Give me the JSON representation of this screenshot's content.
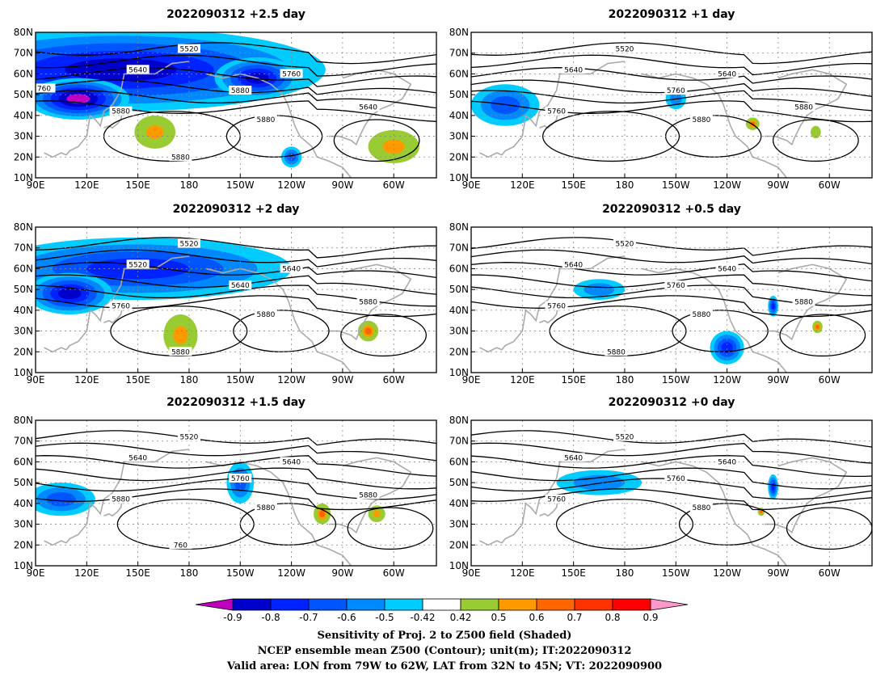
{
  "panels": [
    {
      "title": "2022090312  +2.5 day",
      "contour_labels": [
        "5520",
        "5640",
        "5760",
        "5880",
        "5880",
        "5880",
        "5640",
        "5880",
        "760"
      ],
      "blobs": [
        {
          "lon": 140,
          "lat": 62,
          "rx": 120,
          "ry": 20,
          "level": -0.8
        },
        {
          "lon": 115,
          "lat": 48,
          "rx": 30,
          "ry": 10,
          "level": -0.9
        },
        {
          "lon": 220,
          "lat": 58,
          "rx": 25,
          "ry": 10,
          "level": -0.85
        },
        {
          "lon": 160,
          "lat": 32,
          "rx": 12,
          "ry": 8,
          "level": 0.6
        },
        {
          "lon": 300,
          "lat": 25,
          "rx": 15,
          "ry": 8,
          "level": 0.65
        },
        {
          "lon": 240,
          "lat": 20,
          "rx": 6,
          "ry": 5,
          "level": -0.6
        }
      ]
    },
    {
      "title": "2022090312  +1 day",
      "contour_labels": [
        "5520",
        "5640",
        "5640",
        "5760",
        "5760",
        "5880",
        "5880"
      ],
      "blobs": [
        {
          "lon": 110,
          "lat": 45,
          "rx": 20,
          "ry": 10,
          "level": -0.65
        },
        {
          "lon": 210,
          "lat": 48,
          "rx": 6,
          "ry": 5,
          "level": -0.5
        },
        {
          "lon": 255,
          "lat": 36,
          "rx": 4,
          "ry": 3,
          "level": 0.7
        },
        {
          "lon": 292,
          "lat": 32,
          "rx": 3,
          "ry": 3,
          "level": 0.5
        }
      ]
    },
    {
      "title": "2022090312  +2 day",
      "contour_labels": [
        "5520",
        "5520",
        "5640",
        "5640",
        "5760",
        "5880",
        "5880",
        "5880"
      ],
      "blobs": [
        {
          "lon": 150,
          "lat": 60,
          "rx": 90,
          "ry": 15,
          "level": -0.75
        },
        {
          "lon": 110,
          "lat": 48,
          "rx": 25,
          "ry": 10,
          "level": -0.85
        },
        {
          "lon": 175,
          "lat": 28,
          "rx": 10,
          "ry": 10,
          "level": 0.65
        },
        {
          "lon": 285,
          "lat": 30,
          "rx": 6,
          "ry": 5,
          "level": 0.7
        }
      ]
    },
    {
      "title": "2022090312  +0.5 day",
      "contour_labels": [
        "5520",
        "5640",
        "5640",
        "5760",
        "5760",
        "5880",
        "5880",
        "5880"
      ],
      "blobs": [
        {
          "lon": 165,
          "lat": 50,
          "rx": 15,
          "ry": 5,
          "level": -0.5
        },
        {
          "lon": 240,
          "lat": 22,
          "rx": 10,
          "ry": 8,
          "level": -0.7
        },
        {
          "lon": 267,
          "lat": 42,
          "rx": 3,
          "ry": 5,
          "level": -0.75
        },
        {
          "lon": 293,
          "lat": 32,
          "rx": 3,
          "ry": 3,
          "level": 0.7
        }
      ]
    },
    {
      "title": "2022090312  +1.5 day",
      "contour_labels": [
        "5520",
        "5640",
        "5640",
        "5760",
        "5880",
        "5880",
        "5880",
        "760"
      ],
      "blobs": [
        {
          "lon": 105,
          "lat": 42,
          "rx": 20,
          "ry": 8,
          "level": -0.6
        },
        {
          "lon": 210,
          "lat": 50,
          "rx": 8,
          "ry": 10,
          "level": -0.65
        },
        {
          "lon": 258,
          "lat": 35,
          "rx": 5,
          "ry": 5,
          "level": 0.7
        },
        {
          "lon": 290,
          "lat": 35,
          "rx": 5,
          "ry": 4,
          "level": 0.65
        }
      ]
    },
    {
      "title": "2022090312  +0",
      "title_suffix": " day",
      "contour_labels": [
        "5520",
        "5640",
        "5640",
        "5760",
        "5760",
        "5880"
      ],
      "blobs": [
        {
          "lon": 165,
          "lat": 50,
          "rx": 25,
          "ry": 6,
          "level": -0.55
        },
        {
          "lon": 267,
          "lat": 48,
          "rx": 3,
          "ry": 6,
          "level": -0.7
        },
        {
          "lon": 260,
          "lat": 36,
          "rx": 2,
          "ry": 2,
          "level": 0.7
        }
      ]
    }
  ],
  "axes": {
    "lon_ticks": [
      "90E",
      "120E",
      "150E",
      "180",
      "150W",
      "120W",
      "90W",
      "60W"
    ],
    "lat_ticks": [
      "80N",
      "70N",
      "60N",
      "50N",
      "40N",
      "30N",
      "20N",
      "10N"
    ]
  },
  "colorbar": {
    "labels": [
      "-0.9",
      "-0.8",
      "-0.7",
      "-0.6",
      "-0.5",
      "-0.42",
      "0.42",
      "0.5",
      "0.6",
      "0.7",
      "0.8",
      "0.9"
    ],
    "colors": [
      "#c000c0",
      "#0000cc",
      "#0022ff",
      "#0055ff",
      "#0088ff",
      "#00ccff",
      "#ffffff",
      "#99cc33",
      "#ff9900",
      "#ff6600",
      "#ff3300",
      "#ff0000",
      "#ff99cc"
    ]
  },
  "footer": {
    "line1": "Sensitivity of Proj. 2 to Z500 field (Shaded)",
    "line2": "NCEP ensemble mean Z500 (Contour); unit(m); IT:2022090312",
    "line3": "Valid area: LON from 79W to 62W, LAT from 32N to 45N; VT: 2022090900"
  }
}
